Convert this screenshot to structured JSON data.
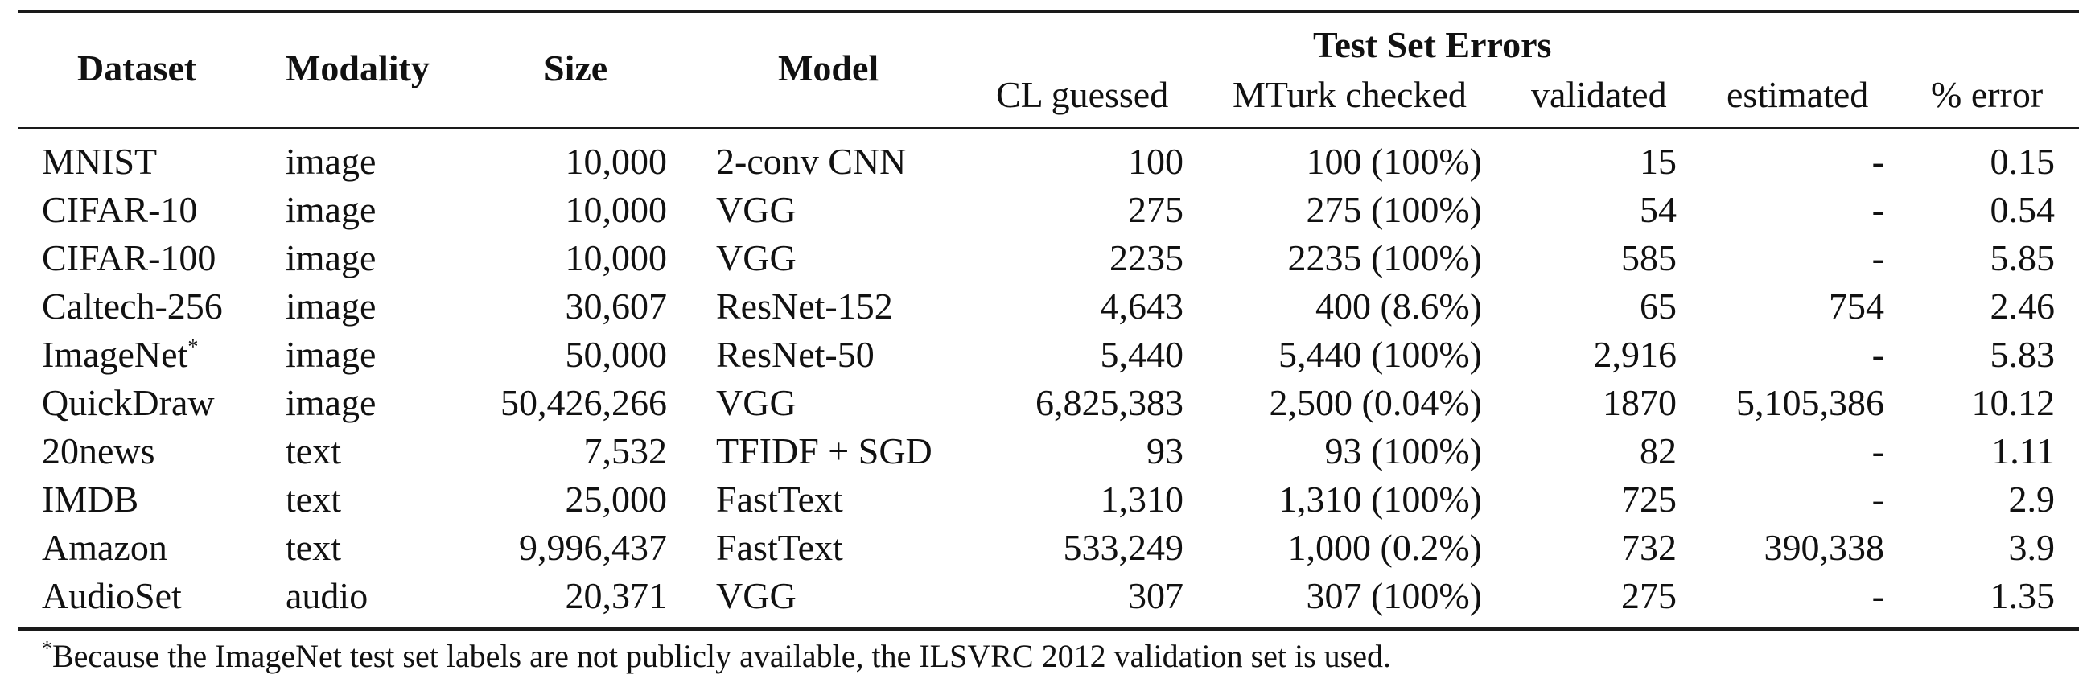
{
  "header": {
    "dataset": "Dataset",
    "modality": "Modality",
    "size": "Size",
    "model": "Model",
    "group": "Test Set Errors",
    "cl_guessed": "CL guessed",
    "mturk_checked": "MTurk checked",
    "validated": "validated",
    "estimated": "estimated",
    "pct_error": "% error"
  },
  "rows": [
    {
      "dataset": "MNIST",
      "sup": "",
      "modality": "image",
      "size": "10,000",
      "model": "2-conv CNN",
      "cl": "100",
      "mturk": "100 (100%)",
      "validated": "15",
      "estimated": "-",
      "pct": "0.15"
    },
    {
      "dataset": "CIFAR-10",
      "sup": "",
      "modality": "image",
      "size": "10,000",
      "model": "VGG",
      "cl": "275",
      "mturk": "275 (100%)",
      "validated": "54",
      "estimated": "-",
      "pct": "0.54"
    },
    {
      "dataset": "CIFAR-100",
      "sup": "",
      "modality": "image",
      "size": "10,000",
      "model": "VGG",
      "cl": "2235",
      "mturk": "2235 (100%)",
      "validated": "585",
      "estimated": "-",
      "pct": "5.85"
    },
    {
      "dataset": "Caltech-256",
      "sup": "",
      "modality": "image",
      "size": "30,607",
      "model": "ResNet-152",
      "cl": "4,643",
      "mturk": "400 (8.6%)",
      "validated": "65",
      "estimated": "754",
      "pct": "2.46"
    },
    {
      "dataset": "ImageNet",
      "sup": "*",
      "modality": "image",
      "size": "50,000",
      "model": "ResNet-50",
      "cl": "5,440",
      "mturk": "5,440 (100%)",
      "validated": "2,916",
      "estimated": "-",
      "pct": "5.83"
    },
    {
      "dataset": "QuickDraw",
      "sup": "",
      "modality": "image",
      "size": "50,426,266",
      "model": "VGG",
      "cl": "6,825,383",
      "mturk": "2,500 (0.04%)",
      "validated": "1870",
      "estimated": "5,105,386",
      "pct": "10.12"
    },
    {
      "dataset": "20news",
      "sup": "",
      "modality": "text",
      "size": "7,532",
      "model": "TFIDF + SGD",
      "cl": "93",
      "mturk": "93 (100%)",
      "validated": "82",
      "estimated": "-",
      "pct": "1.11"
    },
    {
      "dataset": "IMDB",
      "sup": "",
      "modality": "text",
      "size": "25,000",
      "model": "FastText",
      "cl": "1,310",
      "mturk": "1,310 (100%)",
      "validated": "725",
      "estimated": "-",
      "pct": "2.9"
    },
    {
      "dataset": "Amazon",
      "sup": "",
      "modality": "text",
      "size": "9,996,437",
      "model": "FastText",
      "cl": "533,249",
      "mturk": "1,000 (0.2%)",
      "validated": "732",
      "estimated": "390,338",
      "pct": "3.9"
    },
    {
      "dataset": "AudioSet",
      "sup": "",
      "modality": "audio",
      "size": "20,371",
      "model": "VGG",
      "cl": "307",
      "mturk": "307 (100%)",
      "validated": "275",
      "estimated": "-",
      "pct": "1.35"
    }
  ],
  "footnote": {
    "marker": "*",
    "text": "Because the ImageNet test set labels are not publicly available, the ILSVRC 2012 validation set is used."
  }
}
